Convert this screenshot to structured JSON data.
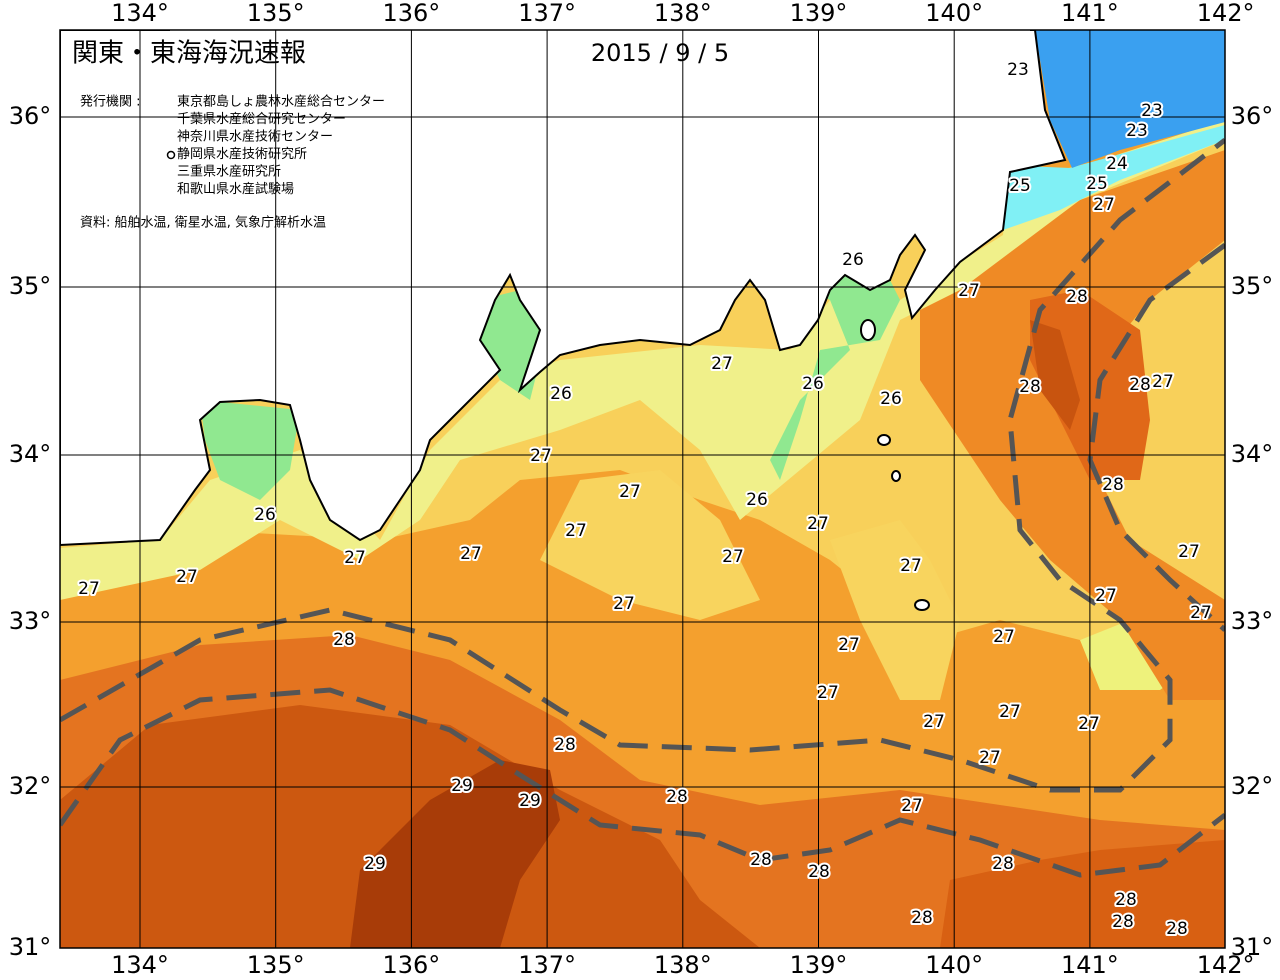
{
  "header": {
    "title": "関東・東海海況速報",
    "date": "2015 / 9 / 5"
  },
  "publishers": {
    "label": "発行機関 :",
    "organizations": [
      "東京都島しょ農林水産総合センター",
      "千葉県水産総合研究センター",
      "神奈川県水産技術センター",
      "静岡県水産技術研究所",
      "三重県水産研究所",
      "和歌山県水産試験場"
    ]
  },
  "source": "資料: 船舶水温, 衛星水温, 気象庁解析水温",
  "longitude_labels": [
    "134°",
    "135°",
    "136°",
    "137°",
    "138°",
    "139°",
    "140°",
    "141°",
    "142°"
  ],
  "latitude_labels": [
    "36°",
    "35°",
    "34°",
    "33°",
    "32°",
    "31°"
  ],
  "contour_labels": [
    23,
    23,
    23,
    24,
    25,
    25,
    27,
    26,
    27,
    28,
    27,
    26,
    26,
    26,
    28,
    28,
    27,
    27,
    27,
    28,
    26,
    27,
    27,
    26,
    27,
    27,
    27,
    27,
    27,
    27,
    27,
    27,
    27,
    27,
    28,
    27,
    27,
    27,
    27,
    27,
    27,
    28,
    27,
    29,
    29,
    28,
    27,
    28,
    28,
    28,
    29,
    28,
    28,
    28,
    28
  ]
}
